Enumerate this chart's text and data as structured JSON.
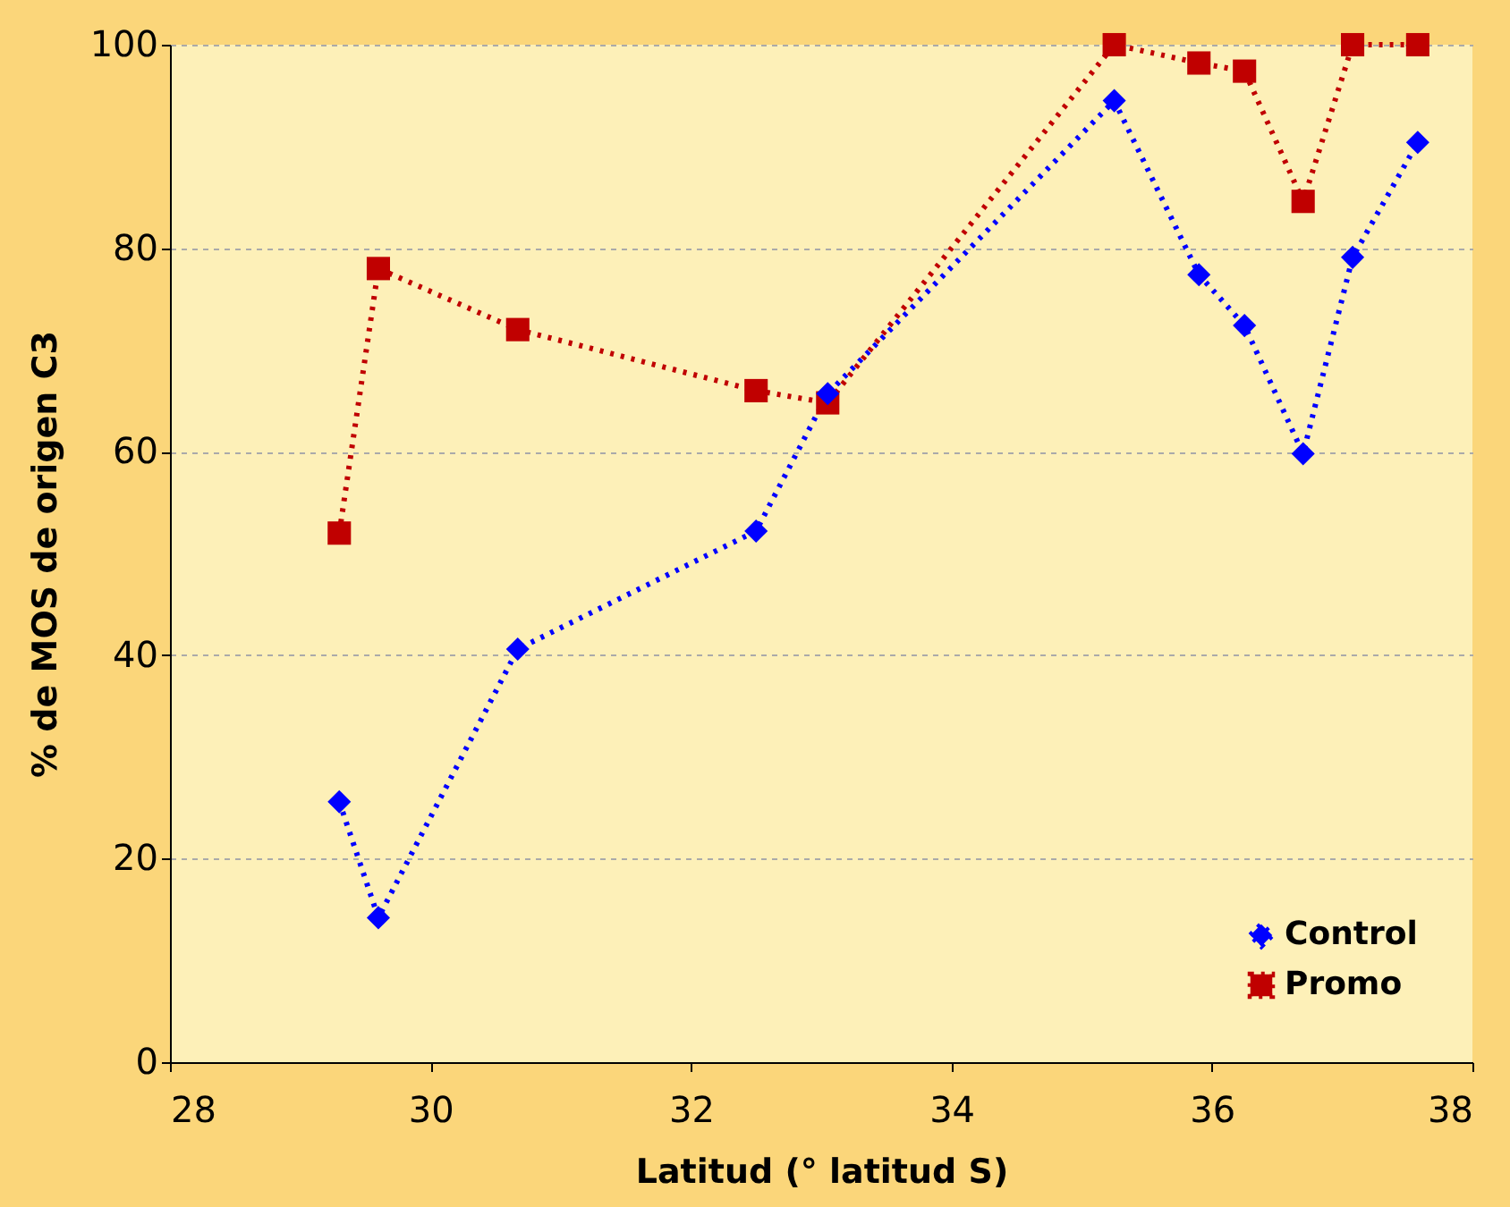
{
  "chart_data": {
    "type": "line",
    "xlabel": "Latitud (°  latitud S)",
    "ylabel": "% de MOS de origen C3",
    "xlim": [
      28,
      38
    ],
    "xticks": [
      28,
      30,
      32,
      34,
      36,
      38
    ],
    "ylim": [
      0,
      100
    ],
    "yticks": [
      0,
      20,
      40,
      60,
      80,
      100
    ],
    "grid": "y",
    "legend": "bottom right",
    "line_style": "dotted",
    "series": [
      {
        "name": "Control",
        "color": "#0000ff",
        "marker": "diamond",
        "x": [
          29.3,
          29.6,
          30.67,
          32.5,
          33.05,
          35.25,
          35.9,
          36.25,
          36.7,
          37.08,
          37.58
        ],
        "values": [
          25.6,
          14.2,
          40.6,
          52.2,
          65.7,
          94.5,
          77.4,
          72.4,
          59.8,
          79.1,
          90.4
        ]
      },
      {
        "name": "Promo",
        "color": "#c00000",
        "marker": "square",
        "x": [
          29.3,
          29.6,
          30.67,
          32.5,
          33.05,
          35.25,
          35.9,
          36.25,
          36.7,
          37.08,
          37.58
        ],
        "values": [
          52,
          78,
          72,
          66,
          64.8,
          100,
          98.2,
          97.4,
          84.6,
          100,
          100
        ]
      }
    ]
  }
}
